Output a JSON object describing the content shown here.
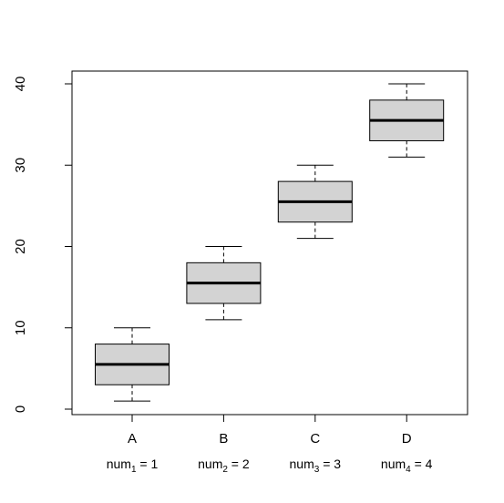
{
  "chart_data": {
    "type": "boxplot",
    "title": "",
    "xlabel": "",
    "ylabel": "",
    "ylim": [
      0,
      40
    ],
    "yticks": [
      "0",
      "10",
      "20",
      "30",
      "40"
    ],
    "categories": [
      "A",
      "B",
      "C",
      "D"
    ],
    "sublabels": [
      {
        "base": "num",
        "sub": "1",
        "rest": " = 1"
      },
      {
        "base": "num",
        "sub": "2",
        "rest": " = 2"
      },
      {
        "base": "num",
        "sub": "3",
        "rest": " = 3"
      },
      {
        "base": "num",
        "sub": "4",
        "rest": " = 4"
      }
    ],
    "boxes": [
      {
        "category": "A",
        "min": 1,
        "q1": 3,
        "median": 5.5,
        "q3": 8,
        "max": 10
      },
      {
        "category": "B",
        "min": 11,
        "q1": 13,
        "median": 15.5,
        "q3": 18,
        "max": 20
      },
      {
        "category": "C",
        "min": 21,
        "q1": 23,
        "median": 25.5,
        "q3": 28,
        "max": 30
      },
      {
        "category": "D",
        "min": 31,
        "q1": 33,
        "median": 35.5,
        "q3": 38,
        "max": 40
      }
    ],
    "box_fill": "#d3d3d3",
    "line_color": "#000000",
    "grid": false
  }
}
